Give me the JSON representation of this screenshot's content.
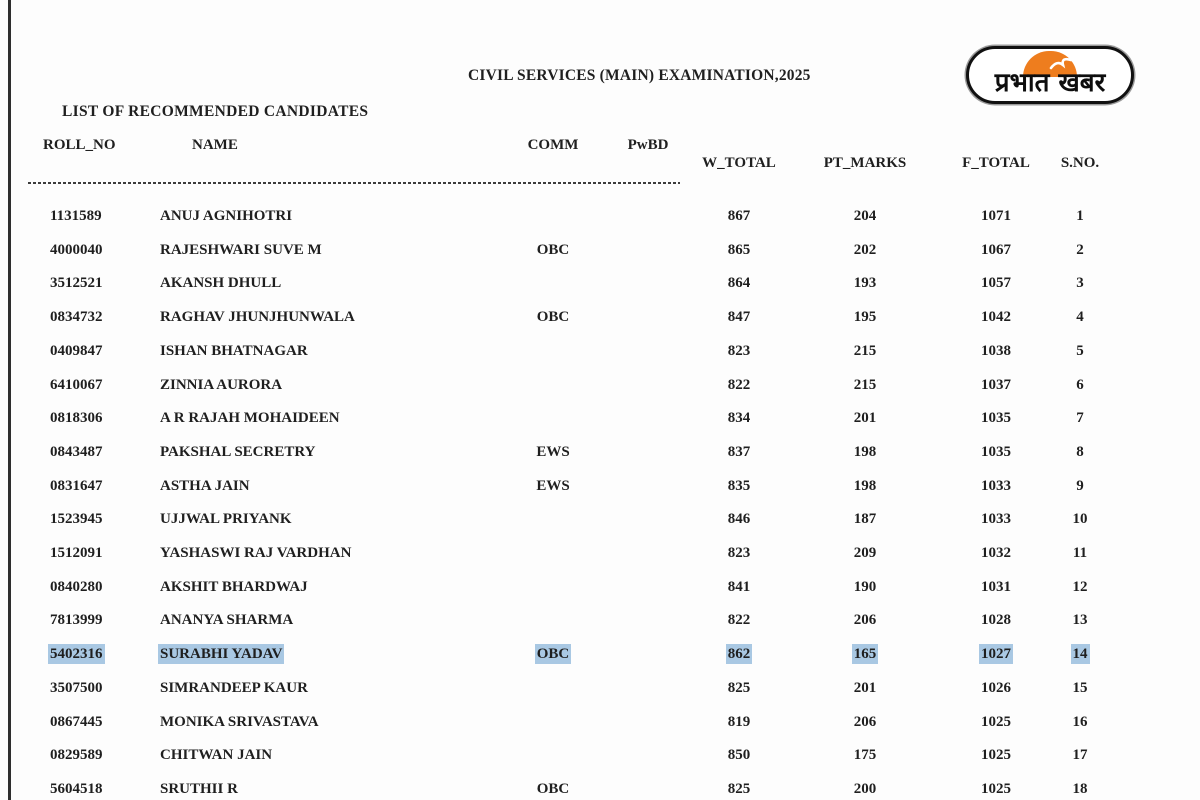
{
  "header": {
    "title": "CIVIL SERVICES (MAIN) EXAMINATION,2025",
    "subtitle": "LIST OF RECOMMENDED CANDIDATES"
  },
  "logo": {
    "name": "Prabhat Khabar",
    "text": "प्रभात खबर",
    "sun_color": "#ee7d1e",
    "border_color": "#111111"
  },
  "colors": {
    "selection_highlight": "#a9c8e3",
    "text": "#1f1f1f"
  },
  "table": {
    "headers": {
      "roll_no": "ROLL_NO",
      "name": "NAME",
      "comm": "COMM",
      "pwbd": "PwBD",
      "w_total": "W_TOTAL",
      "pt_marks": "PT_MARKS",
      "f_total": "F_TOTAL",
      "s_no": "S.NO."
    },
    "rows": [
      {
        "roll_no": "1131589",
        "name": "ANUJ AGNIHOTRI",
        "comm": "",
        "pwbd": "",
        "w_total": "867",
        "pt_marks": "204",
        "f_total": "1071",
        "s_no": "1",
        "highlighted": false
      },
      {
        "roll_no": "4000040",
        "name": "RAJESHWARI SUVE M",
        "comm": "OBC",
        "pwbd": "",
        "w_total": "865",
        "pt_marks": "202",
        "f_total": "1067",
        "s_no": "2",
        "highlighted": false
      },
      {
        "roll_no": "3512521",
        "name": "AKANSH DHULL",
        "comm": "",
        "pwbd": "",
        "w_total": "864",
        "pt_marks": "193",
        "f_total": "1057",
        "s_no": "3",
        "highlighted": false
      },
      {
        "roll_no": "0834732",
        "name": "RAGHAV JHUNJHUNWALA",
        "comm": "OBC",
        "pwbd": "",
        "w_total": "847",
        "pt_marks": "195",
        "f_total": "1042",
        "s_no": "4",
        "highlighted": false
      },
      {
        "roll_no": "0409847",
        "name": "ISHAN BHATNAGAR",
        "comm": "",
        "pwbd": "",
        "w_total": "823",
        "pt_marks": "215",
        "f_total": "1038",
        "s_no": "5",
        "highlighted": false
      },
      {
        "roll_no": "6410067",
        "name": "ZINNIA AURORA",
        "comm": "",
        "pwbd": "",
        "w_total": "822",
        "pt_marks": "215",
        "f_total": "1037",
        "s_no": "6",
        "highlighted": false
      },
      {
        "roll_no": "0818306",
        "name": "A R RAJAH MOHAIDEEN",
        "comm": "",
        "pwbd": "",
        "w_total": "834",
        "pt_marks": "201",
        "f_total": "1035",
        "s_no": "7",
        "highlighted": false
      },
      {
        "roll_no": "0843487",
        "name": "PAKSHAL SECRETRY",
        "comm": "EWS",
        "pwbd": "",
        "w_total": "837",
        "pt_marks": "198",
        "f_total": "1035",
        "s_no": "8",
        "highlighted": false
      },
      {
        "roll_no": "0831647",
        "name": "ASTHA JAIN",
        "comm": "EWS",
        "pwbd": "",
        "w_total": "835",
        "pt_marks": "198",
        "f_total": "1033",
        "s_no": "9",
        "highlighted": false
      },
      {
        "roll_no": "1523945",
        "name": "UJJWAL PRIYANK",
        "comm": "",
        "pwbd": "",
        "w_total": "846",
        "pt_marks": "187",
        "f_total": "1033",
        "s_no": "10",
        "highlighted": false
      },
      {
        "roll_no": "1512091",
        "name": "YASHASWI RAJ VARDHAN",
        "comm": "",
        "pwbd": "",
        "w_total": "823",
        "pt_marks": "209",
        "f_total": "1032",
        "s_no": "11",
        "highlighted": false
      },
      {
        "roll_no": "0840280",
        "name": "AKSHIT BHARDWAJ",
        "comm": "",
        "pwbd": "",
        "w_total": "841",
        "pt_marks": "190",
        "f_total": "1031",
        "s_no": "12",
        "highlighted": false
      },
      {
        "roll_no": "7813999",
        "name": "ANANYA SHARMA",
        "comm": "",
        "pwbd": "",
        "w_total": "822",
        "pt_marks": "206",
        "f_total": "1028",
        "s_no": "13",
        "highlighted": false
      },
      {
        "roll_no": "5402316",
        "name": "SURABHI YADAV",
        "comm": "OBC",
        "pwbd": "",
        "w_total": "862",
        "pt_marks": "165",
        "f_total": "1027",
        "s_no": "14",
        "highlighted": true
      },
      {
        "roll_no": "3507500",
        "name": "SIMRANDEEP KAUR",
        "comm": "",
        "pwbd": "",
        "w_total": "825",
        "pt_marks": "201",
        "f_total": "1026",
        "s_no": "15",
        "highlighted": false
      },
      {
        "roll_no": "0867445",
        "name": "MONIKA SRIVASTAVA",
        "comm": "",
        "pwbd": "",
        "w_total": "819",
        "pt_marks": "206",
        "f_total": "1025",
        "s_no": "16",
        "highlighted": false
      },
      {
        "roll_no": "0829589",
        "name": "CHITWAN JAIN",
        "comm": "",
        "pwbd": "",
        "w_total": "850",
        "pt_marks": "175",
        "f_total": "1025",
        "s_no": "17",
        "highlighted": false
      },
      {
        "roll_no": "5604518",
        "name": "SRUTHII R",
        "comm": "OBC",
        "pwbd": "",
        "w_total": "825",
        "pt_marks": "200",
        "f_total": "1025",
        "s_no": "18",
        "highlighted": false
      }
    ]
  }
}
